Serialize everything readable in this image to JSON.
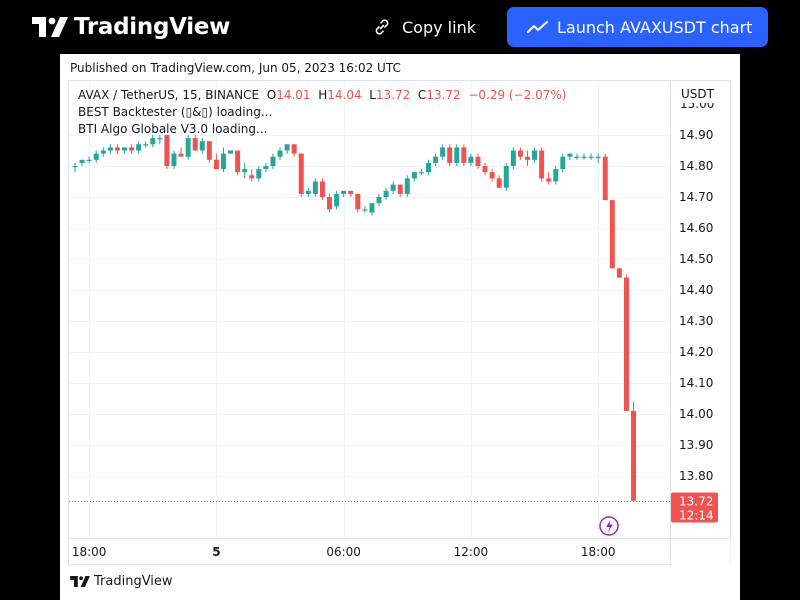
{
  "header": {
    "logo_text": "TradingView",
    "copy_link_label": "Copy link",
    "launch_label": "Launch AVAXUSDT chart"
  },
  "published": "Published on TradingView.com, Jun 05, 2023 16:02 UTC",
  "legend": {
    "symbol": "AVAX / TetherUS, 15, BINANCE",
    "o_label": "O",
    "o_value": "14.01",
    "h_label": "H",
    "h_value": "14.04",
    "l_label": "L",
    "l_value": "13.72",
    "c_label": "C",
    "c_value": "13.72",
    "change": "−0.29 (−2.07%)",
    "indicator1": "BEST Backtester (▯&▯) loading...",
    "indicator2": "BTI Algo Globale V3.0 loading..."
  },
  "footer_logo_text": "TradingView",
  "colors": {
    "up": "#26a69a",
    "down": "#ef5350",
    "accent": "#2962ff"
  },
  "chart_data": {
    "type": "candlestick",
    "currency": "USDT",
    "y_ticks": [
      "14.90",
      "14.80",
      "14.70",
      "14.60",
      "14.50",
      "14.40",
      "14.30",
      "14.20",
      "14.10",
      "14.00",
      "13.90",
      "13.80"
    ],
    "y_top_partial_label": "15.00",
    "x_ticks": [
      {
        "label": "18:00",
        "bold": false,
        "index": 2
      },
      {
        "label": "5",
        "bold": true,
        "index": 20
      },
      {
        "label": "06:00",
        "bold": false,
        "index": 38
      },
      {
        "label": "12:00",
        "bold": false,
        "index": 56
      },
      {
        "label": "18:00",
        "bold": false,
        "index": 74
      }
    ],
    "ylim": [
      13.62,
      15.02
    ],
    "last_price_label": "13.72",
    "countdown_label": "12:14",
    "ohlc": [
      [
        14.8,
        14.81,
        14.78,
        14.8
      ],
      [
        14.81,
        14.82,
        14.8,
        14.82
      ],
      [
        14.82,
        14.83,
        14.81,
        14.82
      ],
      [
        14.82,
        14.85,
        14.81,
        14.84
      ],
      [
        14.84,
        14.86,
        14.83,
        14.85
      ],
      [
        14.85,
        14.87,
        14.84,
        14.86
      ],
      [
        14.86,
        14.87,
        14.84,
        14.85
      ],
      [
        14.85,
        14.86,
        14.84,
        14.86
      ],
      [
        14.86,
        14.87,
        14.84,
        14.85
      ],
      [
        14.85,
        14.88,
        14.84,
        14.87
      ],
      [
        14.87,
        14.88,
        14.86,
        14.87
      ],
      [
        14.87,
        14.9,
        14.86,
        14.89
      ],
      [
        14.89,
        14.9,
        14.87,
        14.89
      ],
      [
        14.9,
        14.9,
        14.79,
        14.8
      ],
      [
        14.8,
        14.85,
        14.79,
        14.84
      ],
      [
        14.84,
        14.86,
        14.83,
        14.83
      ],
      [
        14.83,
        14.9,
        14.82,
        14.89
      ],
      [
        14.89,
        14.9,
        14.85,
        14.85
      ],
      [
        14.85,
        14.89,
        14.84,
        14.88
      ],
      [
        14.88,
        14.88,
        14.81,
        14.82
      ],
      [
        14.82,
        14.84,
        14.79,
        14.79
      ],
      [
        14.79,
        14.86,
        14.78,
        14.84
      ],
      [
        14.84,
        14.85,
        14.84,
        14.85
      ],
      [
        14.85,
        14.85,
        14.77,
        14.78
      ],
      [
        14.78,
        14.81,
        14.76,
        14.79
      ],
      [
        14.77,
        14.79,
        14.75,
        14.76
      ],
      [
        14.76,
        14.8,
        14.75,
        14.79
      ],
      [
        14.79,
        14.81,
        14.78,
        14.8
      ],
      [
        14.8,
        14.84,
        14.79,
        14.83
      ],
      [
        14.83,
        14.86,
        14.82,
        14.85
      ],
      [
        14.85,
        14.87,
        14.84,
        14.87
      ],
      [
        14.87,
        14.87,
        14.83,
        14.84
      ],
      [
        14.84,
        14.84,
        14.7,
        14.71
      ],
      [
        14.71,
        14.73,
        14.7,
        14.72
      ],
      [
        14.71,
        14.76,
        14.7,
        14.75
      ],
      [
        14.75,
        14.76,
        14.69,
        14.7
      ],
      [
        14.7,
        14.71,
        14.65,
        14.66
      ],
      [
        14.67,
        14.72,
        14.66,
        14.71
      ],
      [
        14.71,
        14.72,
        14.7,
        14.72
      ],
      [
        14.72,
        14.72,
        14.7,
        14.71
      ],
      [
        14.71,
        14.71,
        14.65,
        14.66
      ],
      [
        14.66,
        14.67,
        14.65,
        14.66
      ],
      [
        14.65,
        14.68,
        14.64,
        14.68
      ],
      [
        14.68,
        14.71,
        14.67,
        14.7
      ],
      [
        14.7,
        14.73,
        14.69,
        14.72
      ],
      [
        14.72,
        14.75,
        14.71,
        14.74
      ],
      [
        14.74,
        14.74,
        14.7,
        14.71
      ],
      [
        14.71,
        14.77,
        14.7,
        14.76
      ],
      [
        14.76,
        14.78,
        14.75,
        14.78
      ],
      [
        14.78,
        14.79,
        14.77,
        14.78
      ],
      [
        14.78,
        14.82,
        14.77,
        14.81
      ],
      [
        14.81,
        14.84,
        14.8,
        14.83
      ],
      [
        14.83,
        14.87,
        14.82,
        14.86
      ],
      [
        14.86,
        14.87,
        14.8,
        14.81
      ],
      [
        14.81,
        14.87,
        14.8,
        14.86
      ],
      [
        14.86,
        14.87,
        14.8,
        14.81
      ],
      [
        14.81,
        14.84,
        14.8,
        14.83
      ],
      [
        14.83,
        14.84,
        14.79,
        14.8
      ],
      [
        14.8,
        14.81,
        14.77,
        14.78
      ],
      [
        14.78,
        14.79,
        14.75,
        14.76
      ],
      [
        14.76,
        14.77,
        14.73,
        14.73
      ],
      [
        14.73,
        14.81,
        14.72,
        14.8
      ],
      [
        14.8,
        14.86,
        14.79,
        14.85
      ],
      [
        14.85,
        14.86,
        14.82,
        14.83
      ],
      [
        14.83,
        14.85,
        14.8,
        14.82
      ],
      [
        14.82,
        14.86,
        14.81,
        14.85
      ],
      [
        14.85,
        14.86,
        14.75,
        14.76
      ],
      [
        14.76,
        14.78,
        14.74,
        14.75
      ],
      [
        14.75,
        14.8,
        14.74,
        14.79
      ],
      [
        14.79,
        14.84,
        14.78,
        14.83
      ],
      [
        14.83,
        14.84,
        14.82,
        14.84
      ],
      [
        14.83,
        14.84,
        14.82,
        14.83
      ],
      [
        14.83,
        14.84,
        14.82,
        14.83
      ],
      [
        14.83,
        14.84,
        14.82,
        14.83
      ],
      [
        14.83,
        14.84,
        14.81,
        14.83
      ],
      [
        14.83,
        14.84,
        14.69,
        14.69
      ],
      [
        14.69,
        14.69,
        14.47,
        14.47
      ],
      [
        14.47,
        14.47,
        14.44,
        14.44
      ],
      [
        14.44,
        14.45,
        14.01,
        14.01
      ],
      [
        14.01,
        14.04,
        13.72,
        13.72
      ]
    ]
  }
}
